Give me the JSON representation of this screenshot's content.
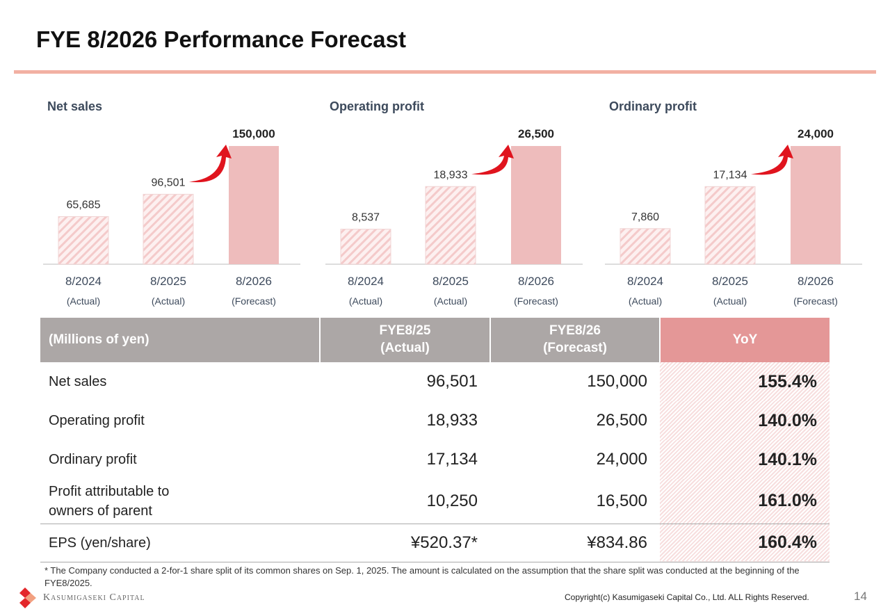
{
  "title": "FYE 8/2026 Performance Forecast",
  "colors": {
    "accent": "#f2b0a3",
    "bar_forecast": "#eebcbc",
    "bar_actual_hatch": "#f4caca",
    "arrow": "#e0141e",
    "header_gray": "#aca7a6",
    "header_yoy": "#e49797"
  },
  "chart_data": [
    {
      "type": "bar",
      "title": "Net sales",
      "categories": [
        "8/2024",
        "8/2025",
        "8/2026"
      ],
      "sublabels": [
        "(Actual)",
        "(Actual)",
        "(Forecast)"
      ],
      "values": [
        65685,
        96501,
        150000
      ],
      "labels": [
        "65,685",
        "96,501",
        "150,000"
      ]
    },
    {
      "type": "bar",
      "title": "Operating profit",
      "categories": [
        "8/2024",
        "8/2025",
        "8/2026"
      ],
      "sublabels": [
        "(Actual)",
        "(Actual)",
        "(Forecast)"
      ],
      "values": [
        8537,
        18933,
        26500
      ],
      "labels": [
        "8,537",
        "18,933",
        "26,500"
      ]
    },
    {
      "type": "bar",
      "title": "Ordinary profit",
      "categories": [
        "8/2024",
        "8/2025",
        "8/2026"
      ],
      "sublabels": [
        "(Actual)",
        "(Actual)",
        "(Forecast)"
      ],
      "values": [
        7860,
        17134,
        24000
      ],
      "labels": [
        "7,860",
        "17,134",
        "24,000"
      ]
    }
  ],
  "table": {
    "headers": [
      "(Millions of yen)",
      "FYE8/25\n(Actual)",
      "FYE8/26\n(Forecast)",
      "YoY"
    ],
    "rows": [
      [
        "Net sales",
        "96,501",
        "150,000",
        "155.4%"
      ],
      [
        "Operating profit",
        "18,933",
        "26,500",
        "140.0%"
      ],
      [
        "Ordinary profit",
        "17,134",
        "24,000",
        "140.1%"
      ],
      [
        "Profit attributable to owners of parent",
        "10,250",
        "16,500",
        "161.0%"
      ],
      [
        "EPS (yen/share)",
        "¥520.37*",
        "¥834.86",
        "160.4%"
      ]
    ]
  },
  "footnote": "* The Company conducted a 2-for-1 share split of its common shares on Sep. 1, 2025. The amount is calculated on the assumption that the share split was conducted at the beginning of the FYE8/2025.",
  "logo_text": "Kasumigaseki Capital",
  "copyright": "Copyright(c) Kasumigaseki Capital Co., Ltd. ALL Rights Reserved.",
  "page_number": "14"
}
